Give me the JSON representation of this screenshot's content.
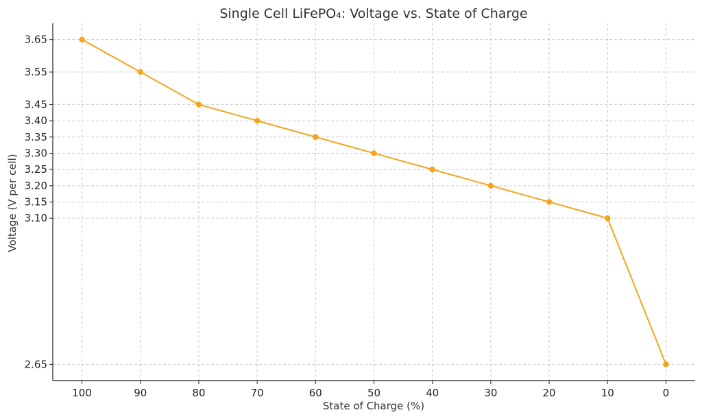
{
  "chart_data": {
    "type": "line",
    "title": "Single Cell LiFePO₄: Voltage vs. State of Charge",
    "xlabel": "State of Charge (%)",
    "ylabel": "Voltage (V per cell)",
    "x": [
      100,
      90,
      80,
      70,
      60,
      50,
      40,
      30,
      20,
      10,
      0
    ],
    "x_ticks": [
      "100",
      "90",
      "80",
      "70",
      "60",
      "50",
      "40",
      "30",
      "20",
      "10",
      "0"
    ],
    "x_reversed": true,
    "xlim": [
      105,
      -5
    ],
    "y_ticks": [
      "2.65",
      "3.10",
      "3.15",
      "3.20",
      "3.25",
      "3.30",
      "3.35",
      "3.40",
      "3.45",
      "3.55",
      "3.65"
    ],
    "ylim": [
      2.6,
      3.7
    ],
    "grid": true,
    "series": [
      {
        "values": [
          3.65,
          3.55,
          3.45,
          3.4,
          3.35,
          3.3,
          3.25,
          3.2,
          3.15,
          3.1,
          2.65
        ],
        "color": "#f5a41c"
      }
    ]
  }
}
